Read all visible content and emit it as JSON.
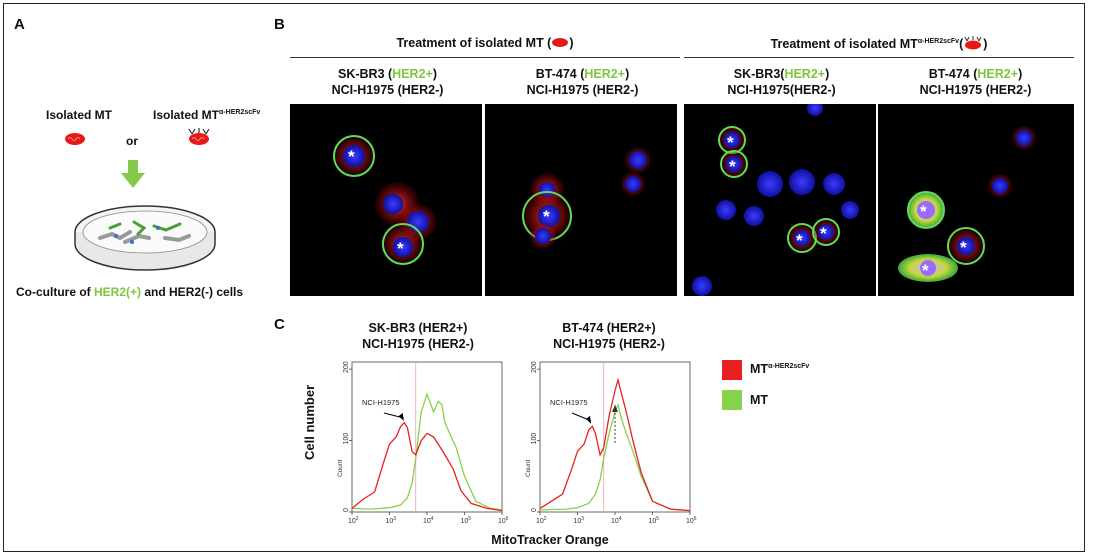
{
  "panels": {
    "a": {
      "letter": "A"
    },
    "b": {
      "letter": "B"
    },
    "c": {
      "letter": "C"
    }
  },
  "panel_a": {
    "isolated_mt": "Isolated MT",
    "isolated_mt_her2_base": "Isolated MT",
    "isolated_mt_her2_sup": "α-HER2scFv",
    "or": "or",
    "coculture_prefix": "Co-culture of ",
    "coculture_her2pos": "HER2(+)",
    "coculture_suffix": " and HER2(-) cells"
  },
  "panel_b": {
    "group1_title_pre": "Treatment of isolated MT (",
    "group1_title_post": ")",
    "group2_title_pre": "Treatment of isolated MT",
    "group2_title_sup": "α-HER2scFv",
    "group2_title_post": ")",
    "columns": [
      {
        "line1_cell": "SK-BR3 (",
        "line1_tag": "HER2+",
        "line1_end": ")",
        "line2": "NCI-H1975 (HER2-)"
      },
      {
        "line1_cell": "BT-474 (",
        "line1_tag": "HER2+",
        "line1_end": ")",
        "line2": "NCI-H1975 (HER2-)"
      },
      {
        "line1_cell": "SK-BR3(",
        "line1_tag": "HER2+",
        "line1_end": ")",
        "line2": "NCI-H1975(HER2-)"
      },
      {
        "line1_cell": "BT-474 (",
        "line1_tag": "HER2+",
        "line1_end": ")",
        "line2": "NCI-H1975 (HER2-)"
      }
    ],
    "star": "*"
  },
  "panel_c": {
    "plot1_title_1": "SK-BR3 (HER2+)",
    "plot1_title_2": "NCI-H1975 (HER2-)",
    "plot2_title_1": "BT-474 (HER2+)",
    "plot2_title_2": "NCI-H1975 (HER2-)",
    "annotation": "NCI-H1975",
    "ylabel": "Cell number",
    "ylabel_small": "Count",
    "xlabel": "MitoTracker Orange",
    "legend_mt_her2_base": "MT",
    "legend_mt_her2_sup": "α-HER2scFv",
    "legend_mt": "MT",
    "colors": {
      "her2": "#e82020",
      "mt": "#86d24a"
    }
  },
  "chart_data": [
    {
      "type": "line",
      "title": "SK-BR3 (HER2+) NCI-H1975 (HER2-)",
      "xlabel": "MitoTracker Orange",
      "ylabel": "Cell number",
      "x_scale": "log",
      "x_ticks": [
        "10^2",
        "10^3",
        "10^4",
        "10^5",
        "10^6"
      ],
      "y_ticks": [
        "0",
        "100",
        "200"
      ],
      "xlim": [
        100,
        1000000
      ],
      "ylim": [
        0,
        210
      ],
      "series": [
        {
          "name": "MT α-HER2scFv",
          "color": "#e82020",
          "x": [
            100,
            200,
            400,
            700,
            1000,
            1500,
            2000,
            2500,
            3000,
            4000,
            5000,
            7000,
            10000,
            15000,
            20000,
            30000,
            50000,
            80000,
            150000,
            400000,
            1000000
          ],
          "y": [
            5,
            18,
            28,
            70,
            95,
            105,
            120,
            125,
            118,
            85,
            80,
            100,
            110,
            105,
            95,
            80,
            60,
            30,
            12,
            5,
            2
          ]
        },
        {
          "name": "MT",
          "color": "#86d24a",
          "x": [
            100,
            300,
            1000,
            2000,
            3000,
            4000,
            5000,
            7000,
            10000,
            15000,
            20000,
            25000,
            30000,
            40000,
            60000,
            100000,
            200000,
            500000,
            1000000
          ],
          "y": [
            5,
            4,
            6,
            10,
            20,
            40,
            75,
            140,
            165,
            140,
            155,
            150,
            125,
            110,
            90,
            50,
            15,
            5,
            3
          ]
        }
      ]
    },
    {
      "type": "line",
      "title": "BT-474 (HER2+) NCI-H1975 (HER2-)",
      "xlabel": "MitoTracker Orange",
      "ylabel": "Cell number",
      "x_scale": "log",
      "x_ticks": [
        "10^2",
        "10^3",
        "10^4",
        "10^5",
        "10^6"
      ],
      "y_ticks": [
        "0",
        "100",
        "200"
      ],
      "xlim": [
        100,
        1000000
      ],
      "ylim": [
        0,
        210
      ],
      "series": [
        {
          "name": "MT α-HER2scFv",
          "color": "#e82020",
          "x": [
            100,
            200,
            400,
            700,
            1000,
            1500,
            2000,
            2500,
            3000,
            4000,
            5000,
            7000,
            10000,
            12000,
            15000,
            20000,
            30000,
            50000,
            100000,
            300000,
            1000000
          ],
          "y": [
            5,
            15,
            25,
            60,
            85,
            95,
            115,
            120,
            110,
            80,
            90,
            135,
            170,
            185,
            165,
            140,
            100,
            55,
            15,
            4,
            2
          ]
        },
        {
          "name": "MT",
          "color": "#86d24a",
          "x": [
            100,
            500,
            1000,
            2000,
            3000,
            4000,
            5000,
            7000,
            10000,
            12000,
            15000,
            20000,
            30000,
            50000,
            100000,
            300000,
            1000000
          ],
          "y": [
            3,
            4,
            6,
            12,
            25,
            45,
            75,
            110,
            140,
            150,
            130,
            110,
            85,
            50,
            15,
            4,
            2
          ]
        }
      ]
    }
  ]
}
